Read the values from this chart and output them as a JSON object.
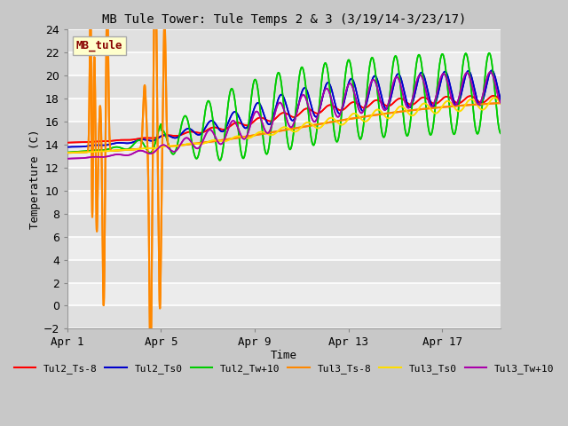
{
  "title": "MB Tule Tower: Tule Temps 2 & 3 (3/19/14-3/23/17)",
  "xlabel": "Time",
  "ylabel": "Temperature (C)",
  "ylim": [
    -2,
    24
  ],
  "yticks": [
    -2,
    0,
    2,
    4,
    6,
    8,
    10,
    12,
    14,
    16,
    18,
    20,
    22,
    24
  ],
  "plot_bg_color": "#e8e8e8",
  "fig_bg_color": "#c8c8c8",
  "legend_label": "MB_tule",
  "legend_box_color": "#ffffcc",
  "legend_box_text_color": "#880000",
  "series": [
    {
      "name": "Tul2_Ts-8",
      "color": "#ff0000",
      "linestyle": "-",
      "lw": 1.2
    },
    {
      "name": "Tul2_Ts0",
      "color": "#0000cc",
      "linestyle": "-",
      "lw": 1.2
    },
    {
      "name": "Tul2_Tw+10",
      "color": "#00cc00",
      "linestyle": "-",
      "lw": 1.2
    },
    {
      "name": "Tul3_Ts-8",
      "color": "#ff8800",
      "linestyle": "-",
      "lw": 1.5
    },
    {
      "name": "Tul3_Ts0",
      "color": "#ffdd00",
      "linestyle": "-",
      "lw": 1.2
    },
    {
      "name": "Tul3_Tw+10",
      "color": "#aa00aa",
      "linestyle": "-",
      "lw": 1.2
    }
  ],
  "xtick_labels": [
    "Apr 1",
    "Apr 5",
    "Apr 9",
    "Apr 13",
    "Apr 17"
  ],
  "xtick_positions": [
    0,
    4,
    8,
    12,
    16
  ],
  "xmax": 18.5,
  "grid_color": "#ffffff",
  "grid_lw": 1.2
}
